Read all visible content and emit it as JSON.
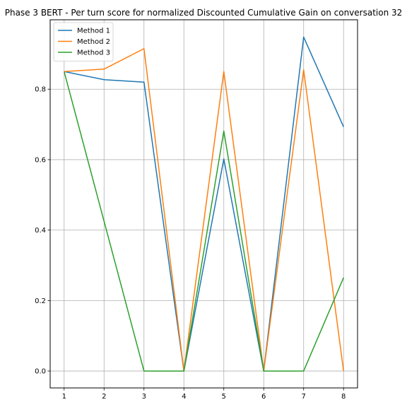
{
  "chart_data": {
    "type": "line",
    "title": "Phase 3 BERT - Per turn score for normalized Discounted Cumulative Gain on conversation 32",
    "xlabel": "",
    "ylabel": "",
    "x": [
      1,
      2,
      3,
      4,
      5,
      6,
      7,
      8
    ],
    "xlim": [
      0.65,
      8.35
    ],
    "ylim": [
      -0.048,
      0.997
    ],
    "x_ticks": [
      1,
      2,
      3,
      4,
      5,
      6,
      7,
      8
    ],
    "y_ticks": [
      0.0,
      0.2,
      0.4,
      0.6,
      0.8
    ],
    "y_tick_labels": [
      "0.0",
      "0.2",
      "0.4",
      "0.6",
      "0.8"
    ],
    "grid": true,
    "legend_position": "upper-left",
    "series": [
      {
        "name": "Method 1",
        "color": "#1f77b4",
        "values": [
          0.85,
          0.827,
          0.82,
          0.0,
          0.602,
          0.0,
          0.948,
          0.693
        ]
      },
      {
        "name": "Method 2",
        "color": "#ff7f0e",
        "values": [
          0.85,
          0.857,
          0.915,
          0.0,
          0.85,
          0.0,
          0.855,
          0.0
        ]
      },
      {
        "name": "Method 3",
        "color": "#2ca02c",
        "values": [
          0.85,
          0.425,
          0.0,
          0.0,
          0.681,
          0.0,
          0.0,
          0.265
        ]
      }
    ]
  }
}
